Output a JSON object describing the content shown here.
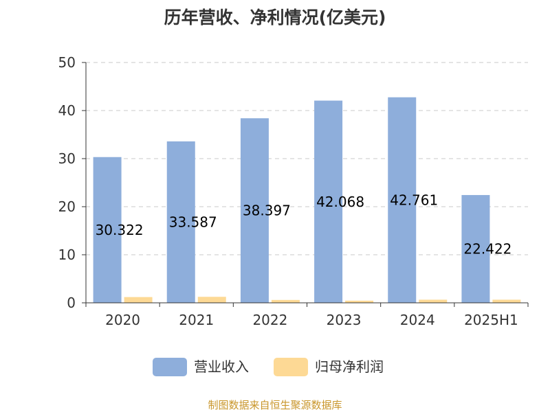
{
  "chart_data": {
    "type": "bar",
    "title": "历年营收、净利情况(亿美元)",
    "categories": [
      "2020",
      "2021",
      "2022",
      "2023",
      "2024",
      "2025H1"
    ],
    "series": [
      {
        "name": "营业收入",
        "color": "#8eaedb",
        "values": [
          30.322,
          33.587,
          38.397,
          42.068,
          42.761,
          22.422
        ],
        "labels": [
          "30.322",
          "33.587",
          "38.397",
          "42.068",
          "42.761",
          "22.422"
        ]
      },
      {
        "name": "归母净利润",
        "color": "#fdd995",
        "values": [
          1.2,
          1.25,
          0.6,
          0.45,
          0.65,
          0.65
        ]
      }
    ],
    "ylim": [
      0,
      50
    ],
    "yticks": [
      0,
      10,
      20,
      30,
      40,
      50
    ],
    "grid": true,
    "legend": "bottom"
  },
  "source_text": "制图数据来自恒生聚源数据库",
  "colors": {
    "axis": "#333333",
    "grid": "#c8c8c8",
    "source": "#c9962b"
  }
}
